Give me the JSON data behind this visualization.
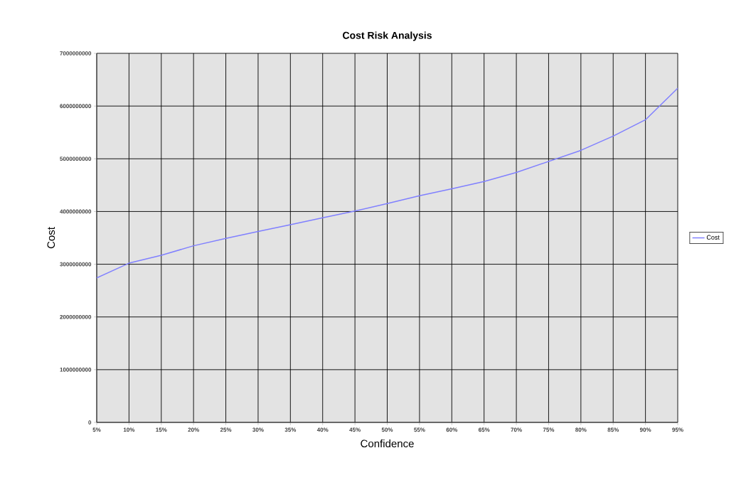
{
  "chart_data": {
    "type": "line",
    "title": "Cost Risk Analysis",
    "xlabel": "Confidence",
    "ylabel": "Cost",
    "categories": [
      "5%",
      "10%",
      "15%",
      "20%",
      "25%",
      "30%",
      "35%",
      "40%",
      "45%",
      "50%",
      "55%",
      "60%",
      "65%",
      "70%",
      "75%",
      "80%",
      "85%",
      "90%",
      "95%"
    ],
    "series": [
      {
        "name": "Cost",
        "color": "#8080ff",
        "values": [
          2740000000,
          3020000000,
          3170000000,
          3350000000,
          3490000000,
          3620000000,
          3750000000,
          3880000000,
          4010000000,
          4150000000,
          4300000000,
          4430000000,
          4570000000,
          4740000000,
          4950000000,
          5160000000,
          5430000000,
          5740000000,
          6340000000
        ]
      }
    ],
    "ylim": [
      0,
      7000000000
    ],
    "yticks": [
      0,
      1000000000,
      2000000000,
      3000000000,
      4000000000,
      5000000000,
      6000000000,
      7000000000
    ],
    "grid": true,
    "legend": "right",
    "marker": "none",
    "line_style": "solid"
  }
}
